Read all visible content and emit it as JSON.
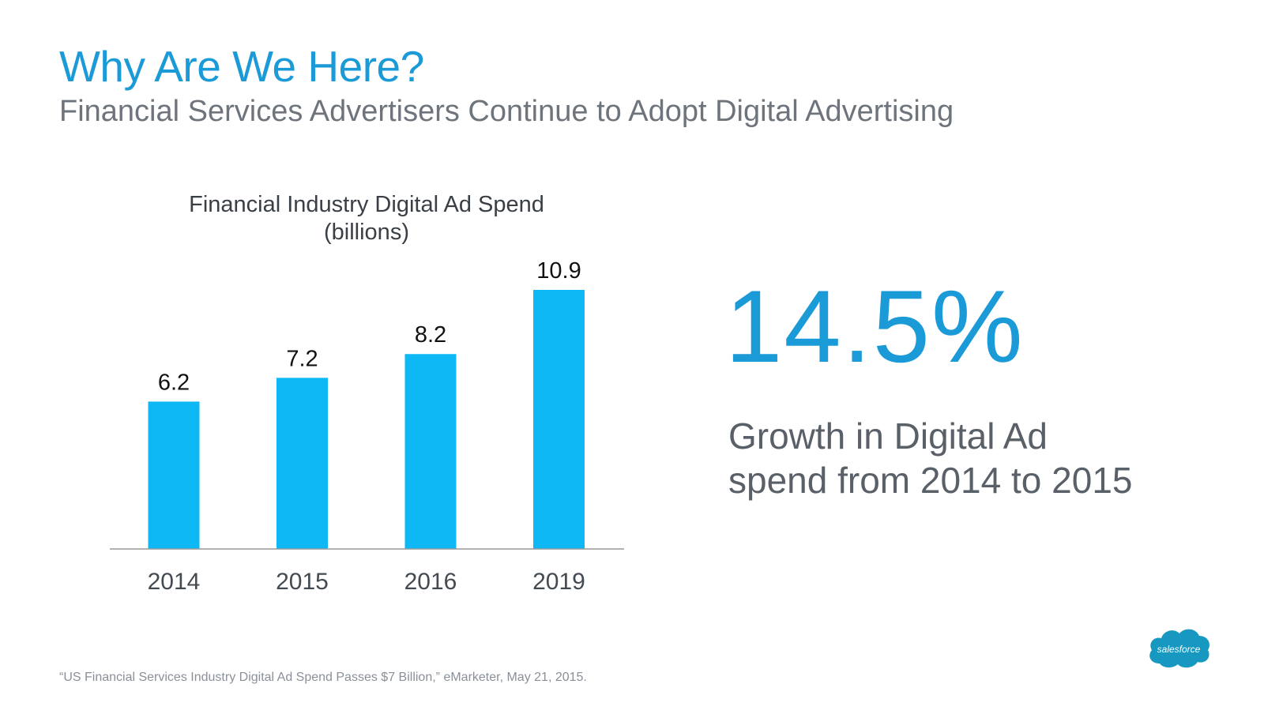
{
  "slide": {
    "title": "Why Are We Here?",
    "subtitle": "Financial Services Advertisers Continue to Adopt Digital Advertising"
  },
  "chart_data": {
    "type": "bar",
    "title": "Financial Industry Digital Ad Spend",
    "subtitle": "(billions)",
    "categories": [
      "2014",
      "2015",
      "2016",
      "2019"
    ],
    "values": [
      6.2,
      7.2,
      8.2,
      10.9
    ],
    "data_labels": [
      "6.2",
      "7.2",
      "8.2",
      "10.9"
    ],
    "ylim": [
      0,
      10.9
    ],
    "grid": false,
    "legend": "none",
    "bar_color": "#0db8f5"
  },
  "stat": {
    "value": "14.5%",
    "caption_line1": "Growth in Digital Ad",
    "caption_line2": "spend from 2014 to 2015"
  },
  "footer": {
    "source": "“US Financial Services Industry Digital Ad Spend Passes $7 Billion,” eMarketer, May 21, 2015.",
    "logo_text": "salesforce",
    "logo_color": "#1798c1"
  },
  "colors": {
    "accent": "#1b9ad8",
    "gray_text": "#6e747c"
  }
}
